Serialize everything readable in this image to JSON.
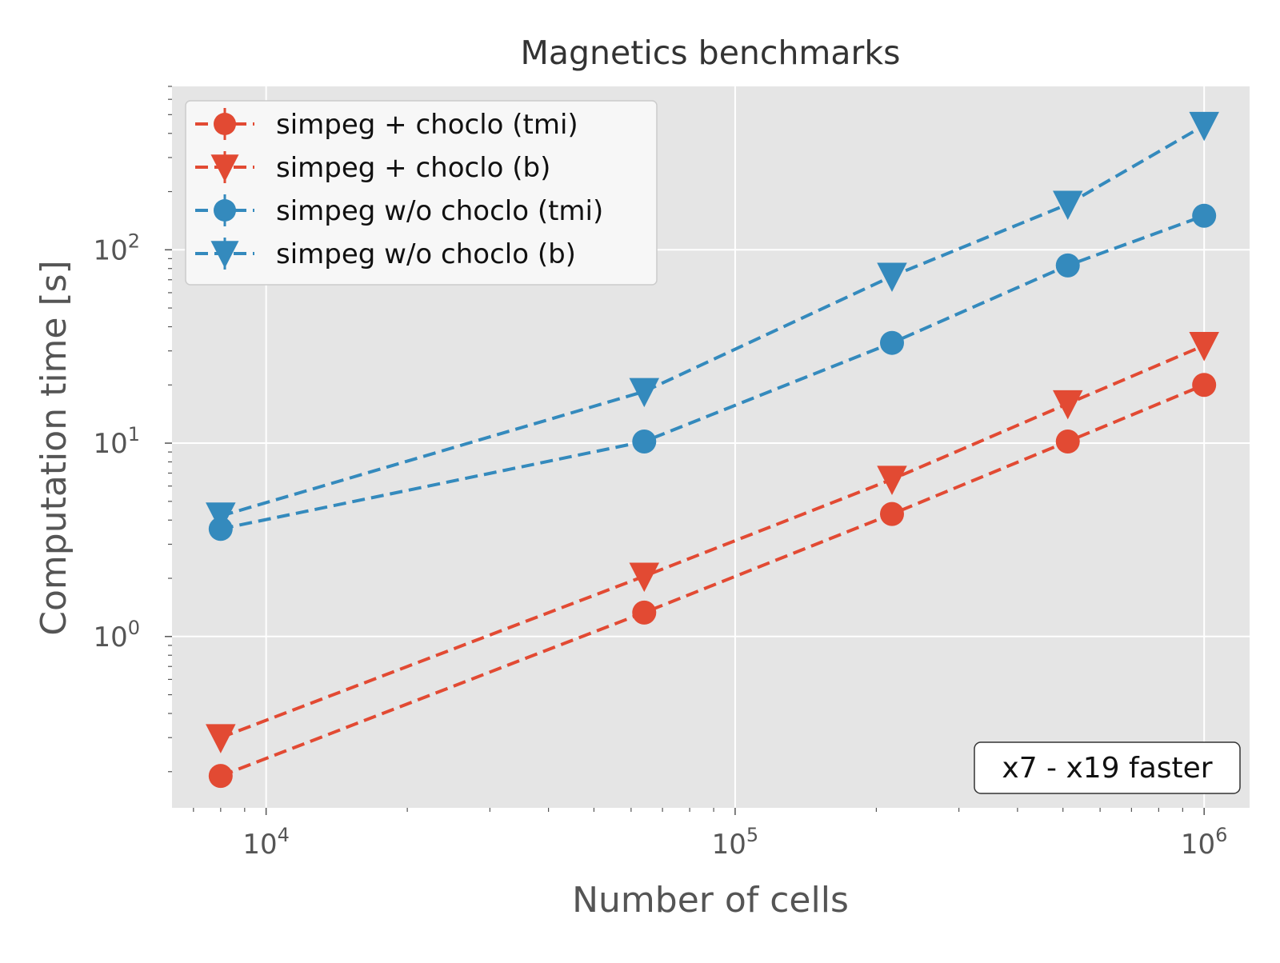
{
  "chart_data": {
    "type": "line",
    "title": "Magnetics benchmarks",
    "xlabel": "Number of cells",
    "ylabel": "Computation time [s]",
    "xscale": "log",
    "yscale": "log",
    "xlim": [
      6300,
      1250000
    ],
    "ylim": [
      0.13,
      700
    ],
    "grid": true,
    "legend_position": "top-left",
    "xticks": [
      {
        "base": "10",
        "exp": "4",
        "value": 10000
      },
      {
        "base": "10",
        "exp": "5",
        "value": 100000
      },
      {
        "base": "10",
        "exp": "6",
        "value": 1000000
      }
    ],
    "yticks": [
      {
        "base": "10",
        "exp": "0",
        "value": 1
      },
      {
        "base": "10",
        "exp": "1",
        "value": 10
      },
      {
        "base": "10",
        "exp": "2",
        "value": 100
      }
    ],
    "x": [
      8000,
      64000,
      216000,
      512000,
      1000000
    ],
    "series": [
      {
        "name": "simpeg + choclo (tmi)",
        "color": "#E24A33",
        "marker": "circle",
        "values": [
          0.19,
          1.33,
          4.3,
          10.2,
          20
        ]
      },
      {
        "name": "simpeg + choclo (b)",
        "color": "#E24A33",
        "marker": "triangle-down",
        "values": [
          0.3,
          2.05,
          6.5,
          16,
          32
        ]
      },
      {
        "name": "simpeg w/o choclo (tmi)",
        "color": "#348ABD",
        "marker": "circle",
        "values": [
          3.6,
          10.2,
          33,
          83,
          150
        ]
      },
      {
        "name": "simpeg w/o choclo (b)",
        "color": "#348ABD",
        "marker": "triangle-down",
        "values": [
          4.2,
          18.5,
          73,
          172,
          440
        ]
      }
    ],
    "annotation": "x7 - x19 faster"
  },
  "colors": {
    "plot_background": "#E5E5E5",
    "grid": "#FFFFFF",
    "red": "#E24A33",
    "blue": "#348ABD"
  }
}
